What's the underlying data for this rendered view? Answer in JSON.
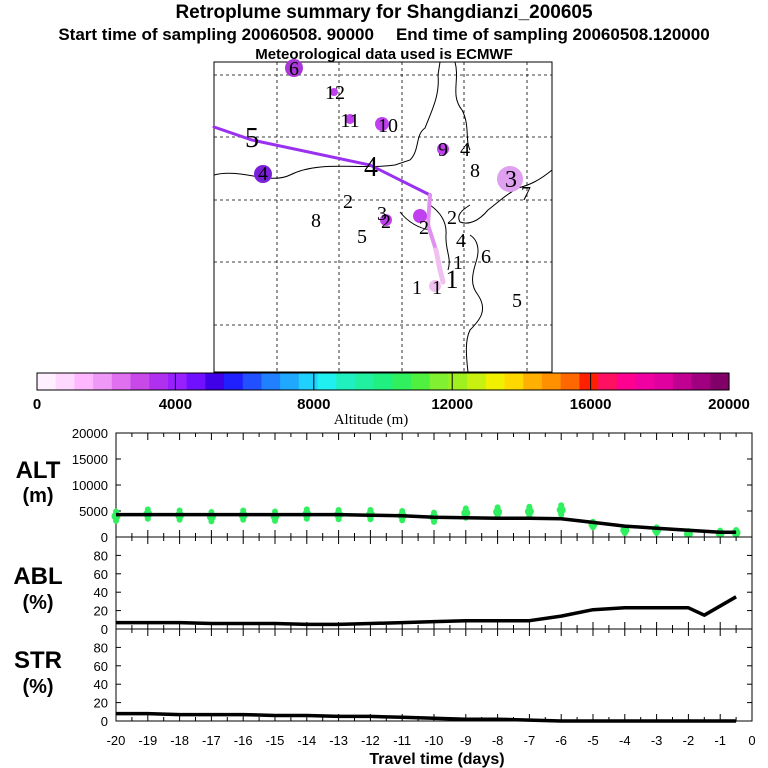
{
  "header": {
    "title": "Retroplume summary for Shangdianzi_200605",
    "start_label": "Start time of sampling 20060508. 90000",
    "end_label": "End time of sampling 20060508.120000",
    "met_label": "Meteorological data used is ECMWF"
  },
  "colorbar": {
    "axis_label": "Altitude (m)",
    "tick_labels": [
      "0",
      "4000",
      "8000",
      "12000",
      "16000",
      "20000"
    ],
    "colors": [
      "#fff0ff",
      "#ffd8ff",
      "#ffb8ff",
      "#f098f8",
      "#e070f0",
      "#c848e8",
      "#b030f0",
      "#9820ff",
      "#7010ff",
      "#4000e8",
      "#2020ff",
      "#2050ff",
      "#2080ff",
      "#20a8ff",
      "#20d0ff",
      "#20f0f0",
      "#20f0c0",
      "#20f0a0",
      "#20f080",
      "#30f060",
      "#50f040",
      "#80f030",
      "#a0f020",
      "#c8f010",
      "#f0f000",
      "#ffd800",
      "#ffb000",
      "#ff9000",
      "#ff6800",
      "#ff2000",
      "#ff1060",
      "#ff0090",
      "#f000a0",
      "#e000a0",
      "#c00090",
      "#a00080",
      "#800068"
    ]
  },
  "map": {
    "cluster_labels": [
      "1",
      "1",
      "1",
      "1",
      "2",
      "2",
      "2",
      "2",
      "3",
      "3",
      "4",
      "4",
      "4",
      "4",
      "5",
      "5",
      "5",
      "6",
      "6",
      "7",
      "8",
      "8",
      "9",
      "10",
      "11",
      "12"
    ],
    "colors": {
      "track_dark": "#9a30f0",
      "track_light": "#e090f0",
      "track_lightest": "#f0c0f0",
      "dot_violet": "#7a20d8",
      "dot_purple": "#a838d8",
      "dot_magenta": "#c040f0",
      "dot_pink": "#e0a0f0"
    }
  },
  "chart_data": [
    {
      "type": "line",
      "title": "ALT",
      "ylabel": "ALT (m)",
      "xlabel": "Travel time (days)",
      "ylim": [
        0,
        20000
      ],
      "yticks": [
        "20000",
        "15000",
        "10000",
        "5000",
        "0"
      ],
      "x": [
        -20,
        -19,
        -18,
        -17,
        -16,
        -15,
        -14,
        -13,
        -12,
        -11,
        -10,
        -9,
        -8,
        -7,
        -6,
        -5,
        -4,
        -3,
        -2,
        -1,
        -0.5
      ],
      "series": [
        {
          "name": "mean altitude",
          "values": [
            4300,
            4300,
            4300,
            4300,
            4300,
            4300,
            4300,
            4300,
            4200,
            4100,
            3800,
            3700,
            3600,
            3600,
            3500,
            2800,
            2100,
            1700,
            1300,
            900,
            900
          ]
        },
        {
          "name": "particle altitudes",
          "values": [
            4000,
            4400,
            4200,
            3900,
            4200,
            4000,
            4400,
            4300,
            4300,
            4100,
            3800,
            4600,
            4800,
            4900,
            5200,
            2400,
            1300,
            1300,
            600,
            700,
            800
          ]
        }
      ],
      "colors": {
        "line": "#000000",
        "scatter": "#30f060"
      }
    },
    {
      "type": "line",
      "title": "ABL",
      "ylabel": "ABL (%)",
      "ylim": [
        0,
        100
      ],
      "yticks": [
        "80",
        "60",
        "40",
        "20",
        "0"
      ],
      "x": [
        -20,
        -19,
        -18,
        -17,
        -16,
        -15,
        -14,
        -13,
        -12,
        -11,
        -10,
        -9,
        -8,
        -7,
        -6,
        -5,
        -4,
        -3,
        -2,
        -1.5,
        -0.5
      ],
      "series": [
        {
          "name": "ABL fraction",
          "values": [
            7,
            7,
            7,
            6,
            6,
            6,
            5,
            5,
            6,
            7,
            8,
            9,
            9,
            9,
            14,
            21,
            23,
            23,
            23,
            15,
            35
          ]
        }
      ]
    },
    {
      "type": "line",
      "title": "STR",
      "ylabel": "STR (%)",
      "ylim": [
        0,
        100
      ],
      "yticks": [
        "80",
        "60",
        "40",
        "20",
        "0"
      ],
      "x": [
        -20,
        -19,
        -18,
        -17,
        -16,
        -15,
        -14,
        -13,
        -12,
        -11,
        -10,
        -9,
        -8,
        -7,
        -6,
        -5,
        -4,
        -3,
        -2,
        -1,
        -0.5
      ],
      "series": [
        {
          "name": "stratospheric fraction",
          "values": [
            8,
            8,
            7,
            7,
            7,
            6,
            6,
            5,
            5,
            4,
            3,
            2,
            2,
            1,
            0,
            0,
            0,
            0,
            0,
            0,
            0
          ]
        }
      ]
    }
  ],
  "xaxis": {
    "tick_labels": [
      "-20",
      "-19",
      "-18",
      "-17",
      "-16",
      "-15",
      "-14",
      "-13",
      "-12",
      "-11",
      "-10",
      "-9",
      "-8",
      "-7",
      "-6",
      "-5",
      "-4",
      "-3",
      "-2",
      "-1",
      "0"
    ],
    "label": "Travel time (days)"
  },
  "panel_labels": {
    "alt_line1": "ALT",
    "alt_line2": "(m)",
    "abl_line1": "ABL",
    "abl_line2": "(%)",
    "str_line1": "STR",
    "str_line2": "(%)"
  }
}
